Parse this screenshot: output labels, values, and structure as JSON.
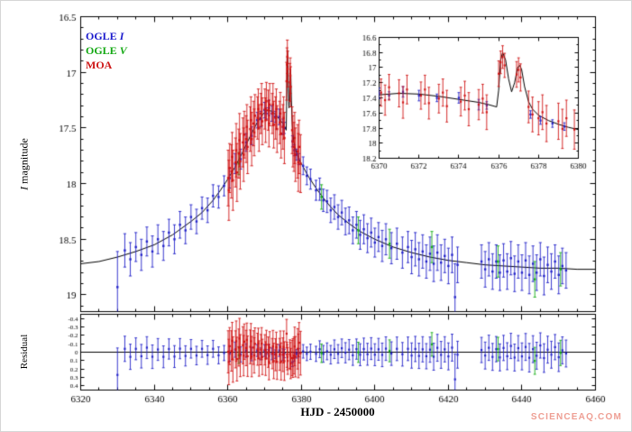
{
  "page": {
    "watermark": "SCIENCEAQ.COM",
    "watermark_color": "#ec8d80",
    "background": "#ffffff"
  },
  "chart_data": {
    "type": "scatter",
    "title": "",
    "xlabel": "HJD - 2450000",
    "ylabel_main_italic": "I",
    "ylabel_main_text": " magnitude",
    "ylabel_residual": "Residual",
    "x_range": [
      6320,
      6460
    ],
    "x_ticks": [
      6320,
      6340,
      6360,
      6380,
      6400,
      6420,
      6440,
      6460
    ],
    "main_y_range": [
      16.5,
      19.15
    ],
    "main_y_ticks": [
      16.5,
      17,
      17.5,
      18,
      18.5,
      19
    ],
    "residual_y_range": [
      -0.45,
      0.45
    ],
    "residual_y_ticks": [
      -0.4,
      -0.3,
      -0.2,
      -0.1,
      0,
      0.1,
      0.2,
      0.3,
      0.4
    ],
    "grid": false,
    "legend_position": "top-left",
    "inset": {
      "x_range": [
        6370,
        6380
      ],
      "x_ticks": [
        6370,
        6372,
        6374,
        6376,
        6378,
        6380
      ],
      "y_range": [
        16.6,
        18.2
      ],
      "y_ticks": [
        16.6,
        16.8,
        17,
        17.2,
        17.4,
        17.6,
        17.8,
        18,
        18.2
      ]
    },
    "legend": [
      {
        "text": "OGLE ",
        "italic": "I",
        "color": "#1a1acd"
      },
      {
        "text": "OGLE ",
        "italic": "V",
        "color": "#12a812"
      },
      {
        "text": "MOA",
        "italic": "",
        "color": "#cd1414"
      }
    ],
    "model_curve": [
      [
        6320,
        18.72
      ],
      [
        6325,
        18.7
      ],
      [
        6330,
        18.66
      ],
      [
        6335,
        18.61
      ],
      [
        6340,
        18.55
      ],
      [
        6345,
        18.46
      ],
      [
        6350,
        18.34
      ],
      [
        6353,
        18.26
      ],
      [
        6356,
        18.15
      ],
      [
        6358,
        18.06
      ],
      [
        6360,
        17.96
      ],
      [
        6362,
        17.85
      ],
      [
        6364,
        17.72
      ],
      [
        6366,
        17.58
      ],
      [
        6368,
        17.45
      ],
      [
        6369,
        17.4
      ],
      [
        6370,
        17.36
      ],
      [
        6371,
        17.34
      ],
      [
        6372,
        17.35
      ],
      [
        6373,
        17.38
      ],
      [
        6374,
        17.42
      ],
      [
        6375,
        17.46
      ],
      [
        6375.5,
        17.49
      ],
      [
        6375.9,
        17.52
      ],
      [
        6376.0,
        17.3
      ],
      [
        6376.1,
        16.9
      ],
      [
        6376.2,
        16.8
      ],
      [
        6376.35,
        16.9
      ],
      [
        6376.5,
        17.15
      ],
      [
        6376.65,
        17.32
      ],
      [
        6376.8,
        17.2
      ],
      [
        6376.95,
        17.0
      ],
      [
        6377.05,
        16.97
      ],
      [
        6377.15,
        17.02
      ],
      [
        6377.3,
        17.25
      ],
      [
        6377.5,
        17.45
      ],
      [
        6377.7,
        17.55
      ],
      [
        6378.0,
        17.63
      ],
      [
        6378.5,
        17.7
      ],
      [
        6379.0,
        17.75
      ],
      [
        6379.5,
        17.79
      ],
      [
        6380,
        17.82
      ],
      [
        6381,
        17.88
      ],
      [
        6382,
        17.94
      ],
      [
        6384,
        18.04
      ],
      [
        6386,
        18.13
      ],
      [
        6388,
        18.21
      ],
      [
        6390,
        18.28
      ],
      [
        6393,
        18.36
      ],
      [
        6396,
        18.43
      ],
      [
        6400,
        18.5
      ],
      [
        6405,
        18.57
      ],
      [
        6410,
        18.62
      ],
      [
        6415,
        18.66
      ],
      [
        6420,
        18.69
      ],
      [
        6425,
        18.71
      ],
      [
        6430,
        18.73
      ],
      [
        6435,
        18.74
      ],
      [
        6440,
        18.75
      ],
      [
        6445,
        18.76
      ],
      [
        6450,
        18.76
      ],
      [
        6455,
        18.77
      ],
      [
        6460,
        18.77
      ]
    ],
    "series": [
      {
        "name": "OGLE I",
        "color": "#2020c8",
        "points": [
          [
            6330,
            18.93,
            0.32
          ],
          [
            6332,
            18.6,
            0.15
          ],
          [
            6333.5,
            18.68,
            0.15
          ],
          [
            6335,
            18.57,
            0.13
          ],
          [
            6336.5,
            18.64,
            0.14
          ],
          [
            6338,
            18.52,
            0.13
          ],
          [
            6339.5,
            18.61,
            0.14
          ],
          [
            6341,
            18.5,
            0.13
          ],
          [
            6342.5,
            18.56,
            0.13
          ],
          [
            6344,
            18.44,
            0.12
          ],
          [
            6345.5,
            18.5,
            0.13
          ],
          [
            6347,
            18.37,
            0.12
          ],
          [
            6348.5,
            18.42,
            0.12
          ],
          [
            6350,
            18.3,
            0.11
          ],
          [
            6351.5,
            18.34,
            0.11
          ],
          [
            6353,
            18.22,
            0.1
          ],
          [
            6354.5,
            18.24,
            0.11
          ],
          [
            6356,
            18.11,
            0.1
          ],
          [
            6357.5,
            18.12,
            0.1
          ],
          [
            6359,
            18.02,
            0.09
          ],
          [
            6360.5,
            17.95,
            0.09
          ],
          [
            6362,
            17.82,
            0.09
          ],
          [
            6363.5,
            17.78,
            0.09
          ],
          [
            6365,
            17.63,
            0.08
          ],
          [
            6366.5,
            17.57,
            0.08
          ],
          [
            6368,
            17.43,
            0.07
          ],
          [
            6369,
            17.42,
            0.07
          ],
          [
            6370,
            17.34,
            0.07
          ],
          [
            6370.5,
            17.37,
            0.05
          ],
          [
            6371.2,
            17.32,
            0.07
          ],
          [
            6372,
            17.37,
            0.07
          ],
          [
            6372.9,
            17.4,
            0.05
          ],
          [
            6374,
            17.4,
            0.07
          ],
          [
            6375,
            17.49,
            0.07
          ],
          [
            6375.4,
            17.5,
            0.05
          ],
          [
            6377.6,
            17.62,
            0.05
          ],
          [
            6378.1,
            17.7,
            0.05
          ],
          [
            6378.7,
            17.74,
            0.05
          ],
          [
            6379.3,
            17.78,
            0.05
          ],
          [
            6380.5,
            17.84,
            0.08
          ],
          [
            6381.5,
            17.93,
            0.08
          ],
          [
            6382.5,
            17.96,
            0.09
          ],
          [
            6384,
            18.06,
            0.09
          ],
          [
            6385,
            18.05,
            0.1
          ],
          [
            6386,
            18.15,
            0.1
          ],
          [
            6387,
            18.16,
            0.1
          ],
          [
            6388,
            18.24,
            0.11
          ],
          [
            6389,
            18.21,
            0.11
          ],
          [
            6390,
            18.3,
            0.11
          ],
          [
            6391,
            18.26,
            0.11
          ],
          [
            6392,
            18.34,
            0.12
          ],
          [
            6393,
            18.33,
            0.12
          ],
          [
            6394,
            18.42,
            0.12
          ],
          [
            6395,
            18.37,
            0.12
          ],
          [
            6396,
            18.46,
            0.13
          ],
          [
            6397,
            18.41,
            0.13
          ],
          [
            6398,
            18.49,
            0.13
          ],
          [
            6399,
            18.44,
            0.13
          ],
          [
            6400,
            18.53,
            0.13
          ],
          [
            6401,
            18.48,
            0.13
          ],
          [
            6402,
            18.56,
            0.14
          ],
          [
            6403,
            18.5,
            0.14
          ],
          [
            6404.5,
            18.58,
            0.14
          ],
          [
            6406,
            18.54,
            0.14
          ],
          [
            6407.5,
            18.62,
            0.14
          ],
          [
            6409,
            18.57,
            0.14
          ],
          [
            6410,
            18.66,
            0.15
          ],
          [
            6411,
            18.59,
            0.15
          ],
          [
            6412,
            18.68,
            0.15
          ],
          [
            6413,
            18.61,
            0.15
          ],
          [
            6414,
            18.7,
            0.15
          ],
          [
            6415,
            18.63,
            0.15
          ],
          [
            6416,
            18.72,
            0.16
          ],
          [
            6417,
            18.62,
            0.16
          ],
          [
            6418,
            18.71,
            0.16
          ],
          [
            6419,
            18.65,
            0.15
          ],
          [
            6420,
            18.74,
            0.16
          ],
          [
            6421,
            18.64,
            0.16
          ],
          [
            6421.8,
            19.02,
            0.3
          ],
          [
            6422.5,
            18.73,
            0.16
          ],
          [
            6429,
            18.7,
            0.15
          ],
          [
            6430,
            18.77,
            0.16
          ],
          [
            6431,
            18.68,
            0.15
          ],
          [
            6432,
            18.79,
            0.16
          ],
          [
            6433,
            18.7,
            0.15
          ],
          [
            6434,
            18.8,
            0.16
          ],
          [
            6435,
            18.69,
            0.15
          ],
          [
            6436,
            18.79,
            0.16
          ],
          [
            6437,
            18.67,
            0.15
          ],
          [
            6438,
            18.81,
            0.16
          ],
          [
            6439,
            18.7,
            0.15
          ],
          [
            6440,
            18.8,
            0.16
          ],
          [
            6441,
            18.69,
            0.16
          ],
          [
            6442,
            18.82,
            0.17
          ],
          [
            6443,
            18.72,
            0.16
          ],
          [
            6444,
            18.8,
            0.16
          ],
          [
            6445,
            18.68,
            0.15
          ],
          [
            6446,
            18.83,
            0.17
          ],
          [
            6447,
            18.73,
            0.16
          ],
          [
            6448,
            18.79,
            0.16
          ],
          [
            6449,
            18.7,
            0.15
          ],
          [
            6450,
            18.82,
            0.17
          ],
          [
            6451,
            18.74,
            0.16
          ],
          [
            6452,
            18.78,
            0.16
          ]
        ]
      },
      {
        "name": "OGLE V",
        "color": "#14ad14",
        "points": [
          [
            6363,
            17.82,
            0.1
          ],
          [
            6385.5,
            18.12,
            0.11
          ],
          [
            6395.5,
            18.42,
            0.12
          ],
          [
            6404,
            18.54,
            0.13
          ],
          [
            6415.5,
            18.57,
            0.14
          ],
          [
            6433.5,
            18.7,
            0.14
          ],
          [
            6443.5,
            18.86,
            0.16
          ],
          [
            6450.5,
            18.77,
            0.15
          ]
        ]
      },
      {
        "name": "MOA",
        "color": "#d01414",
        "points": [
          [
            6360.1,
            17.95,
            0.25
          ],
          [
            6360.3,
            18.06,
            0.27
          ],
          [
            6360.5,
            17.86,
            0.22
          ],
          [
            6361.0,
            17.89,
            0.24
          ],
          [
            6361.2,
            17.76,
            0.22
          ],
          [
            6361.4,
            17.97,
            0.27
          ],
          [
            6362.1,
            17.81,
            0.22
          ],
          [
            6362.3,
            17.7,
            0.24
          ],
          [
            6362.5,
            17.9,
            0.26
          ],
          [
            6363.0,
            17.73,
            0.22
          ],
          [
            6363.2,
            17.61,
            0.24
          ],
          [
            6363.4,
            17.8,
            0.25
          ],
          [
            6364.1,
            17.63,
            0.22
          ],
          [
            6364.3,
            17.74,
            0.24
          ],
          [
            6364.5,
            17.56,
            0.21
          ],
          [
            6365.0,
            17.6,
            0.21
          ],
          [
            6365.2,
            17.49,
            0.2
          ],
          [
            6365.4,
            17.67,
            0.24
          ],
          [
            6366.1,
            17.51,
            0.2
          ],
          [
            6366.3,
            17.43,
            0.21
          ],
          [
            6366.5,
            17.6,
            0.24
          ],
          [
            6367.0,
            17.46,
            0.2
          ],
          [
            6367.2,
            17.54,
            0.21
          ],
          [
            6367.4,
            17.39,
            0.19
          ],
          [
            6368.1,
            17.41,
            0.19
          ],
          [
            6368.3,
            17.33,
            0.18
          ],
          [
            6368.5,
            17.5,
            0.21
          ],
          [
            6369.0,
            17.37,
            0.18
          ],
          [
            6369.2,
            17.29,
            0.19
          ],
          [
            6369.4,
            17.44,
            0.21
          ],
          [
            6370.1,
            17.33,
            0.18
          ],
          [
            6370.3,
            17.43,
            0.2
          ],
          [
            6370.5,
            17.26,
            0.17
          ],
          [
            6371.0,
            17.34,
            0.18
          ],
          [
            6371.2,
            17.46,
            0.21
          ],
          [
            6371.4,
            17.29,
            0.19
          ],
          [
            6372.1,
            17.37,
            0.18
          ],
          [
            6372.3,
            17.29,
            0.19
          ],
          [
            6372.5,
            17.47,
            0.21
          ],
          [
            6373.0,
            17.41,
            0.19
          ],
          [
            6373.2,
            17.33,
            0.18
          ],
          [
            6373.4,
            17.51,
            0.21
          ],
          [
            6374.1,
            17.45,
            0.19
          ],
          [
            6374.3,
            17.37,
            0.19
          ],
          [
            6374.5,
            17.55,
            0.22
          ],
          [
            6375.0,
            17.49,
            0.2
          ],
          [
            6375.2,
            17.41,
            0.19
          ],
          [
            6375.4,
            17.59,
            0.23
          ],
          [
            6376.0,
            17.08,
            0.17
          ],
          [
            6376.1,
            16.93,
            0.15
          ],
          [
            6376.2,
            16.86,
            0.15
          ],
          [
            6376.3,
            16.97,
            0.16
          ],
          [
            6376.9,
            17.09,
            0.17
          ],
          [
            6377.0,
            17.03,
            0.16
          ],
          [
            6377.1,
            17.13,
            0.18
          ],
          [
            6377.5,
            17.52,
            0.21
          ],
          [
            6377.7,
            17.62,
            0.23
          ],
          [
            6378.0,
            17.67,
            0.22
          ],
          [
            6378.2,
            17.59,
            0.23
          ],
          [
            6378.4,
            17.74,
            0.24
          ],
          [
            6379.0,
            17.71,
            0.24
          ],
          [
            6379.2,
            17.81,
            0.26
          ],
          [
            6379.4,
            17.67,
            0.24
          ],
          [
            6379.8,
            17.82,
            0.26
          ]
        ]
      }
    ]
  }
}
